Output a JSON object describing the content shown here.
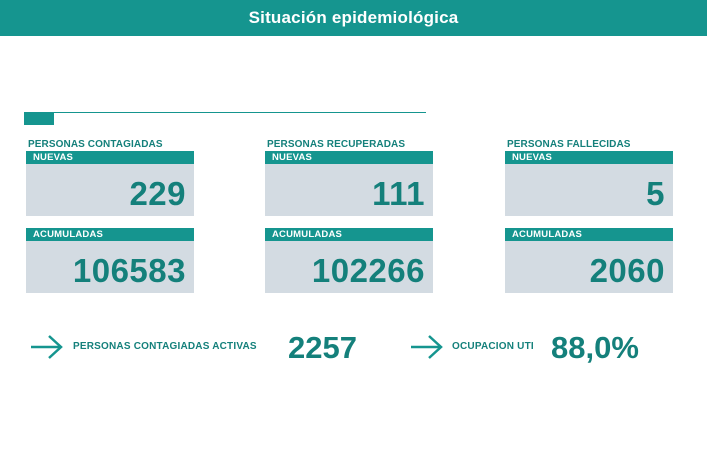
{
  "header": {
    "title": "Situación epidemiológica"
  },
  "colors": {
    "accent": "#15958f",
    "text_accent": "#14807b",
    "card_bg": "#d3dbe2"
  },
  "cards": [
    {
      "category": "PERSONAS CONTAGIADAS",
      "new_label": "NUEVAS",
      "new_value": "229",
      "total_label": "ACUMULADAS",
      "total_value": "106583"
    },
    {
      "category": "PERSONAS RECUPERADAS",
      "new_label": "NUEVAS",
      "new_value": "111",
      "total_label": "ACUMULADAS",
      "total_value": "102266"
    },
    {
      "category": "PERSONAS FALLECIDAS",
      "new_label": "NUEVAS",
      "new_value": "5",
      "total_label": "ACUMULADAS",
      "total_value": "2060"
    }
  ],
  "summary": {
    "active_icon": "arrow-right-icon",
    "active_label": "PERSONAS CONTAGIADAS ACTIVAS",
    "active_value": "2257",
    "uti_icon": "arrow-right-icon",
    "uti_label": "OCUPACION UTI",
    "uti_value": "88,0%"
  }
}
